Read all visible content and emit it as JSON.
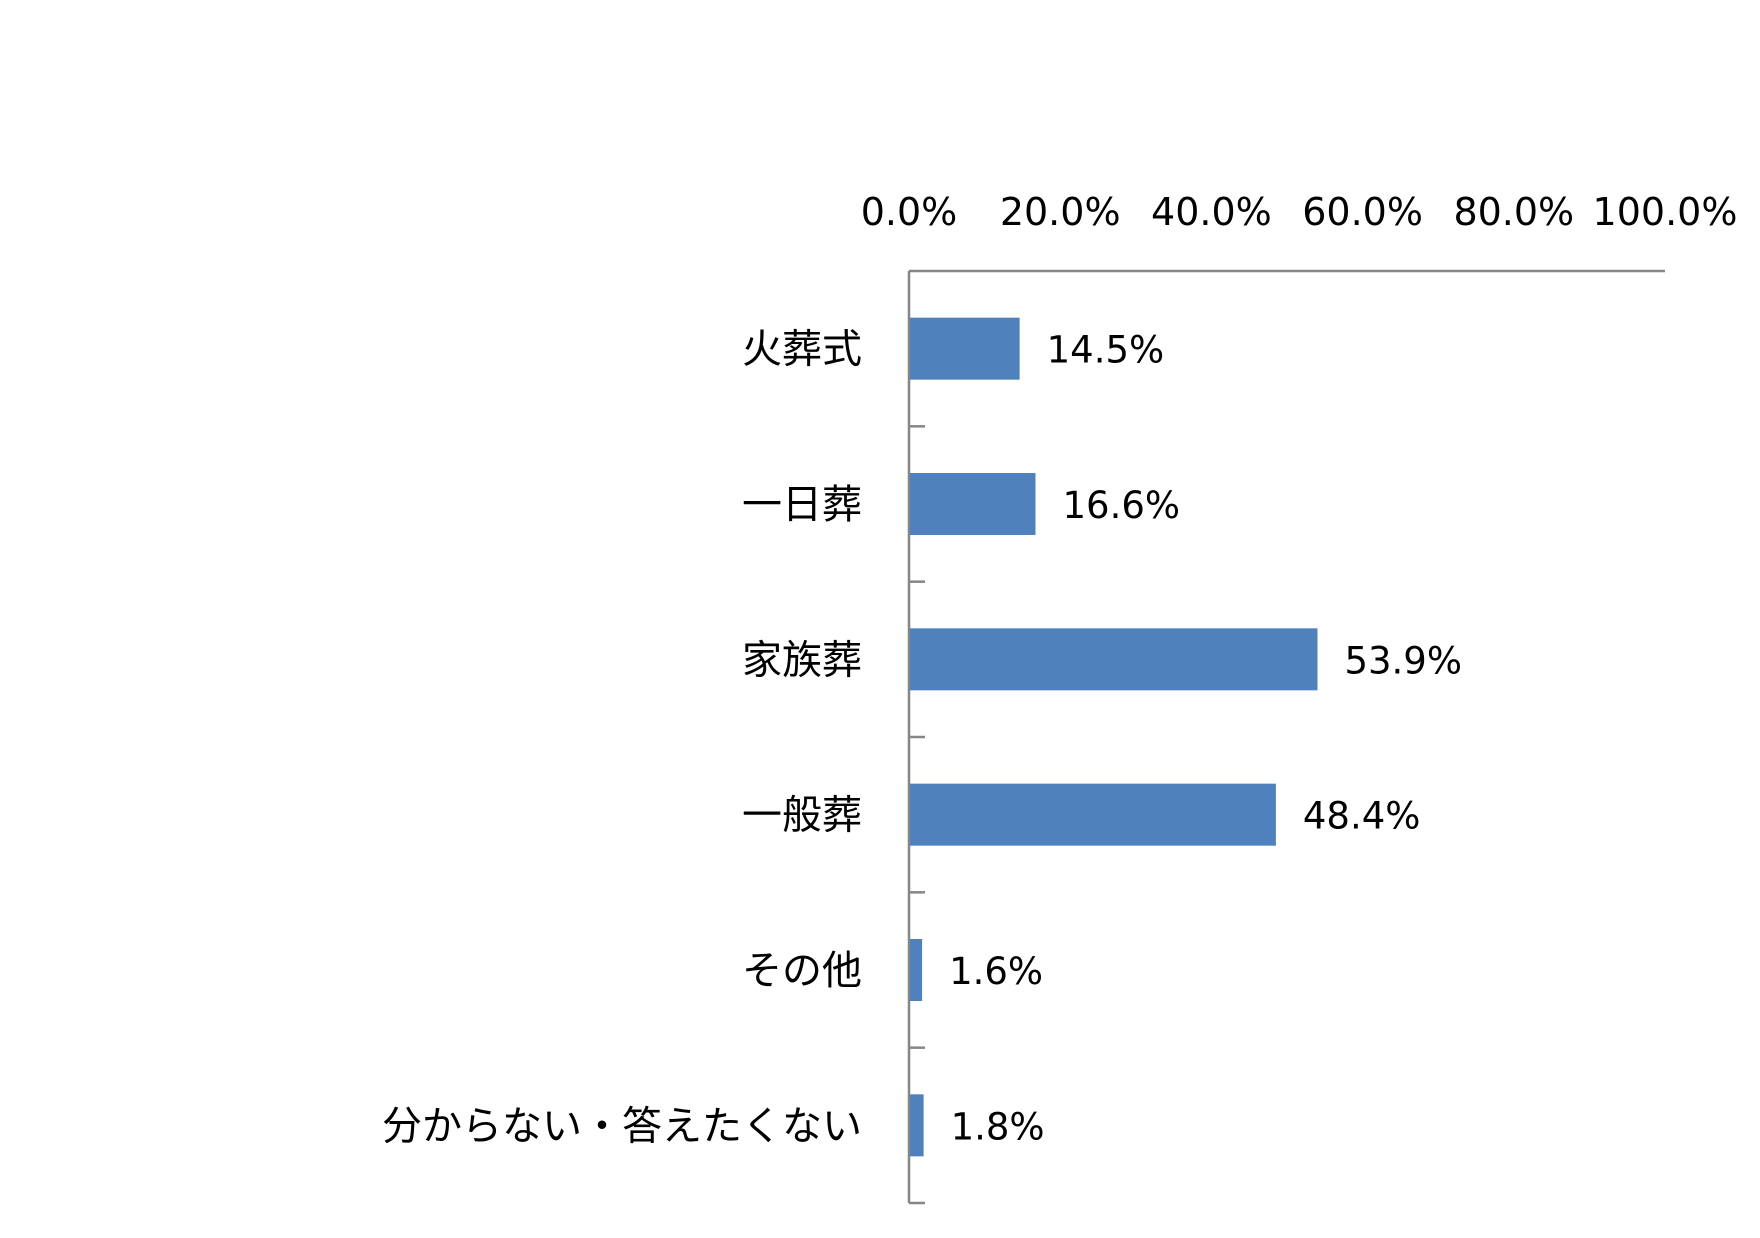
{
  "chart_data": {
    "type": "bar",
    "orientation": "horizontal",
    "title": "",
    "xlabel": "",
    "ylabel": "",
    "categories": [
      "火葬式",
      "一日葬",
      "家族葬",
      "一般葬",
      "その他",
      "分からない・答えたくない"
    ],
    "values": [
      14.5,
      16.6,
      53.9,
      48.4,
      1.6,
      1.8
    ],
    "value_labels": [
      "14.5%",
      "16.6%",
      "53.9%",
      "48.4%",
      "1.6%",
      "1.8%"
    ],
    "xlim": [
      0,
      100
    ],
    "x_ticks": [
      0,
      20,
      40,
      60,
      80,
      100
    ],
    "x_tick_labels": [
      "0.0%",
      "20.0%",
      "40.0%",
      "60.0%",
      "80.0%",
      "100.0%"
    ],
    "x_axis_position": "top",
    "grid": false,
    "legend": "none",
    "bar_color": "#4F81BD",
    "axis_color": "#868686"
  }
}
